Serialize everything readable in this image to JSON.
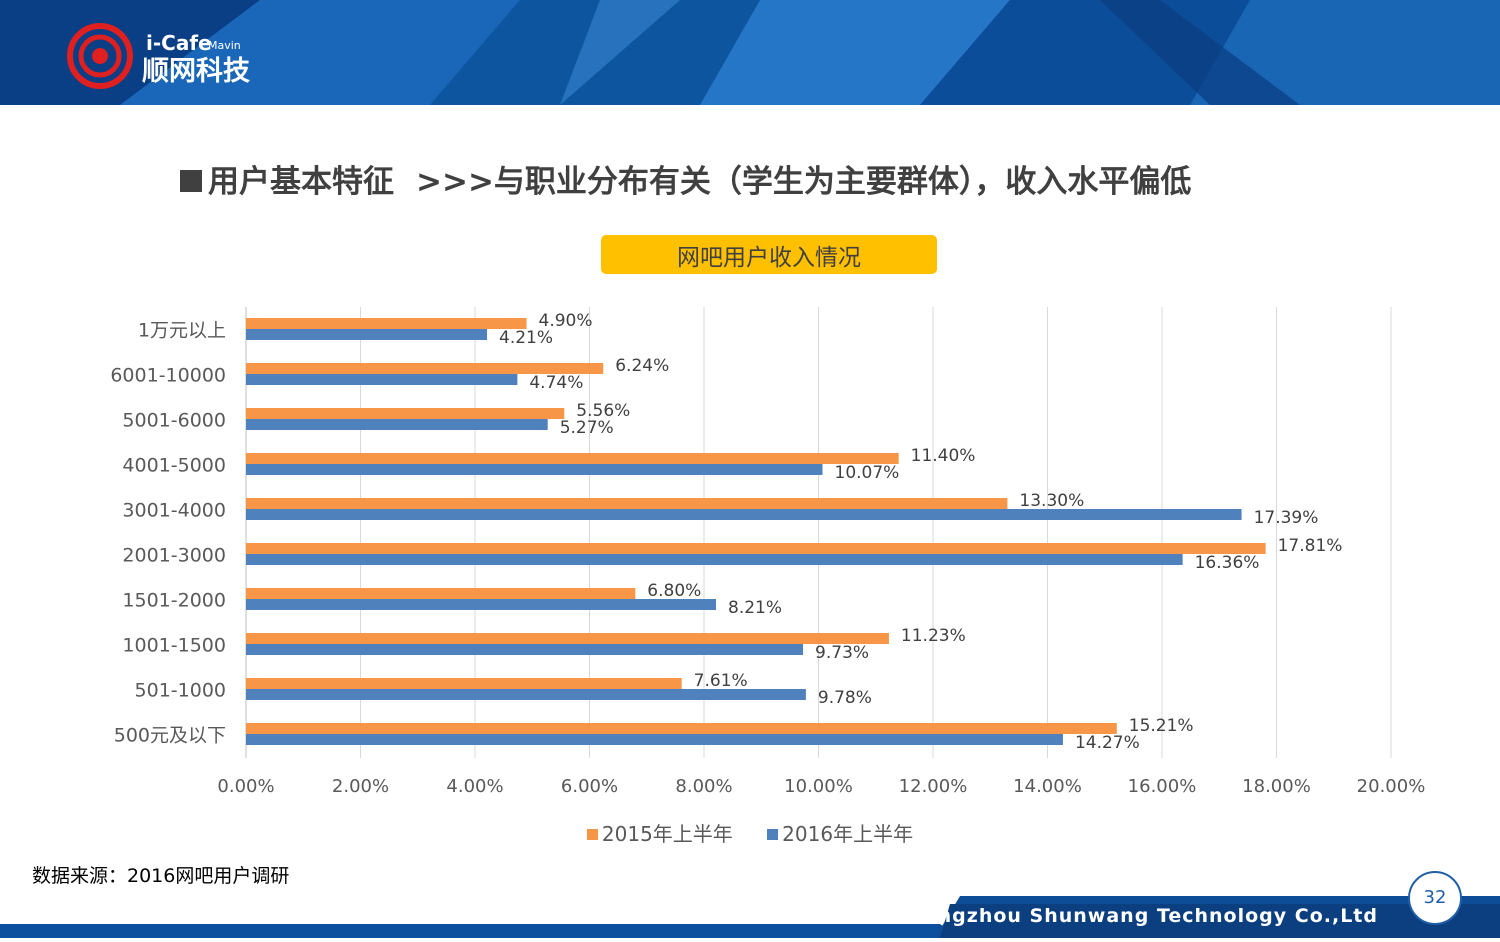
{
  "brand": {
    "logo_latin": "i-Cafe",
    "logo_small": "Mavin",
    "logo_chinese": "顺网科技"
  },
  "title": {
    "main": "用户基本特征",
    "sub": ">>>与职业分布有关（学生为主要群体），收入水平偏低"
  },
  "chart_badge": "网吧用户收入情况",
  "colors": {
    "series_2015": "#f79646",
    "series_2016": "#4f81bd",
    "badge": "#ffc000",
    "header": "#0b4f9e"
  },
  "chart_data": {
    "type": "bar",
    "orientation": "horizontal",
    "categories": [
      "1万元以上",
      "6001-10000",
      "5001-6000",
      "4001-5000",
      "3001-4000",
      "2001-3000",
      "1501-2000",
      "1001-1500",
      "501-1000",
      "500元及以下"
    ],
    "series": [
      {
        "name": "2015年上半年",
        "values": [
          4.9,
          6.24,
          5.56,
          11.4,
          13.3,
          17.81,
          6.8,
          11.23,
          7.61,
          15.21
        ],
        "labels": [
          "4.90%",
          "6.24%",
          "5.56%",
          "11.40%",
          "13.30%",
          "17.81%",
          "6.80%",
          "11.23%",
          "7.61%",
          "15.21%"
        ]
      },
      {
        "name": "2016年上半年",
        "values": [
          4.21,
          4.74,
          5.27,
          10.07,
          17.39,
          16.36,
          8.21,
          9.73,
          9.78,
          14.27
        ],
        "labels": [
          "4.21%",
          "4.74%",
          "5.27%",
          "10.07%",
          "17.39%",
          "16.36%",
          "8.21%",
          "9.73%",
          "9.78%",
          "14.27%"
        ]
      }
    ],
    "xlim": [
      0,
      20
    ],
    "xticks": [
      "0.00%",
      "2.00%",
      "4.00%",
      "6.00%",
      "8.00%",
      "10.00%",
      "12.00%",
      "14.00%",
      "16.00%",
      "18.00%",
      "20.00%"
    ],
    "grid": true,
    "legend_position": "bottom"
  },
  "source": "数据来源：2016网吧用户调研",
  "footer": {
    "company": "Hangzhou Shunwang Technology Co.,Ltd",
    "page": "32"
  }
}
